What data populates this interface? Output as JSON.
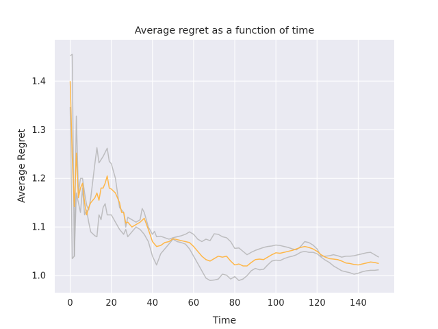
{
  "chart_data": {
    "type": "line",
    "title": "Average regret as a function of time",
    "xlabel": "Time",
    "ylabel": "Average Regret",
    "xlim": [
      -7.5,
      157.5
    ],
    "ylim": [
      0.965,
      1.485
    ],
    "xticks": [
      0,
      20,
      40,
      60,
      80,
      100,
      120,
      140
    ],
    "yticks": [
      1.0,
      1.1,
      1.2,
      1.3,
      1.4
    ],
    "xtick_labels": [
      "0",
      "20",
      "40",
      "60",
      "80",
      "100",
      "120",
      "140"
    ],
    "ytick_labels": [
      "1.0",
      "1.1",
      "1.2",
      "1.3",
      "1.4"
    ],
    "grid": true,
    "background": "#eaeaf2",
    "series": [
      {
        "role": "upper-band",
        "color": "#a9a9a9",
        "x": [
          0,
          1,
          2,
          3,
          4,
          5,
          6,
          7,
          8,
          9,
          10,
          12,
          13,
          14,
          16,
          18,
          19,
          20,
          22,
          24,
          26,
          27,
          28,
          30,
          32,
          34,
          35,
          36,
          38,
          40,
          41,
          42,
          44,
          46,
          48,
          50,
          52,
          54,
          56,
          58,
          60,
          62,
          64,
          66,
          68,
          70,
          72,
          74,
          76,
          78,
          80,
          82,
          84,
          86,
          88,
          90,
          92,
          94,
          96,
          98,
          100,
          102,
          104,
          106,
          108,
          110,
          112,
          114,
          116,
          118,
          120,
          122,
          124,
          126,
          128,
          130,
          132,
          134,
          136,
          138,
          140,
          142,
          144,
          146,
          148,
          150
        ],
        "y": [
          1.452,
          1.455,
          1.04,
          1.328,
          1.17,
          1.2,
          1.2,
          1.17,
          1.145,
          1.135,
          1.16,
          1.23,
          1.263,
          1.232,
          1.245,
          1.262,
          1.235,
          1.23,
          1.2,
          1.14,
          1.13,
          1.1,
          1.12,
          1.115,
          1.11,
          1.115,
          1.138,
          1.13,
          1.1,
          1.085,
          1.091,
          1.08,
          1.081,
          1.078,
          1.075,
          1.078,
          1.08,
          1.082,
          1.085,
          1.09,
          1.085,
          1.075,
          1.07,
          1.075,
          1.072,
          1.086,
          1.085,
          1.08,
          1.078,
          1.07,
          1.056,
          1.057,
          1.05,
          1.043,
          1.048,
          1.052,
          1.055,
          1.058,
          1.06,
          1.061,
          1.063,
          1.062,
          1.06,
          1.058,
          1.055,
          1.053,
          1.06,
          1.07,
          1.068,
          1.063,
          1.055,
          1.04,
          1.04,
          1.041,
          1.043,
          1.041,
          1.038,
          1.04,
          1.04,
          1.041,
          1.043,
          1.045,
          1.047,
          1.048,
          1.043,
          1.038
        ]
      },
      {
        "role": "lower-band",
        "color": "#a9a9a9",
        "x": [
          0,
          1,
          2,
          3,
          4,
          5,
          6,
          7,
          8,
          9,
          10,
          12,
          13,
          14,
          15,
          16,
          17,
          18,
          19,
          20,
          22,
          24,
          26,
          27,
          28,
          30,
          32,
          34,
          36,
          38,
          40,
          42,
          44,
          46,
          48,
          50,
          52,
          54,
          56,
          58,
          60,
          62,
          64,
          66,
          68,
          70,
          72,
          74,
          76,
          78,
          80,
          82,
          84,
          86,
          88,
          90,
          92,
          94,
          96,
          98,
          100,
          102,
          104,
          106,
          108,
          110,
          112,
          114,
          116,
          118,
          120,
          122,
          124,
          126,
          128,
          130,
          132,
          134,
          136,
          138,
          140,
          142,
          144,
          146,
          148,
          150
        ],
        "y": [
          1.347,
          1.035,
          1.04,
          1.17,
          1.15,
          1.13,
          1.18,
          1.125,
          1.135,
          1.11,
          1.09,
          1.082,
          1.08,
          1.125,
          1.115,
          1.14,
          1.148,
          1.125,
          1.125,
          1.125,
          1.11,
          1.095,
          1.085,
          1.095,
          1.08,
          1.09,
          1.1,
          1.095,
          1.085,
          1.07,
          1.04,
          1.022,
          1.045,
          1.055,
          1.065,
          1.075,
          1.07,
          1.068,
          1.065,
          1.055,
          1.04,
          1.025,
          1.01,
          0.995,
          0.99,
          0.991,
          0.993,
          1.003,
          1.001,
          0.993,
          0.998,
          0.99,
          0.993,
          1.0,
          1.01,
          1.015,
          1.012,
          1.013,
          1.022,
          1.03,
          1.032,
          1.031,
          1.035,
          1.038,
          1.04,
          1.043,
          1.048,
          1.05,
          1.048,
          1.048,
          1.045,
          1.038,
          1.032,
          1.027,
          1.02,
          1.015,
          1.01,
          1.008,
          1.006,
          1.003,
          1.005,
          1.008,
          1.01,
          1.011,
          1.011,
          1.012
        ]
      },
      {
        "role": "mean",
        "color": "#ffb43f",
        "x": [
          0,
          1,
          2,
          3,
          4,
          5,
          6,
          7,
          8,
          9,
          10,
          12,
          13,
          14,
          15,
          16,
          17,
          18,
          19,
          20,
          22,
          24,
          25,
          26,
          27,
          28,
          30,
          32,
          34,
          36,
          38,
          40,
          42,
          44,
          46,
          48,
          50,
          52,
          54,
          56,
          58,
          60,
          62,
          64,
          66,
          68,
          70,
          72,
          74,
          76,
          78,
          80,
          82,
          84,
          86,
          88,
          90,
          92,
          94,
          96,
          98,
          100,
          102,
          104,
          106,
          108,
          110,
          112,
          114,
          116,
          118,
          120,
          122,
          124,
          126,
          128,
          130,
          132,
          134,
          136,
          138,
          140,
          142,
          144,
          146,
          148,
          150
        ],
        "y": [
          1.4,
          1.245,
          1.142,
          1.252,
          1.16,
          1.18,
          1.19,
          1.15,
          1.125,
          1.14,
          1.15,
          1.16,
          1.17,
          1.155,
          1.18,
          1.18,
          1.19,
          1.205,
          1.18,
          1.178,
          1.17,
          1.15,
          1.13,
          1.13,
          1.108,
          1.11,
          1.1,
          1.105,
          1.11,
          1.118,
          1.095,
          1.07,
          1.06,
          1.062,
          1.068,
          1.07,
          1.076,
          1.074,
          1.072,
          1.07,
          1.068,
          1.06,
          1.05,
          1.04,
          1.033,
          1.03,
          1.035,
          1.04,
          1.038,
          1.04,
          1.03,
          1.022,
          1.024,
          1.02,
          1.02,
          1.027,
          1.033,
          1.034,
          1.033,
          1.038,
          1.043,
          1.047,
          1.046,
          1.048,
          1.05,
          1.052,
          1.055,
          1.058,
          1.06,
          1.058,
          1.055,
          1.05,
          1.043,
          1.038,
          1.035,
          1.034,
          1.033,
          1.03,
          1.026,
          1.025,
          1.023,
          1.022,
          1.024,
          1.026,
          1.028,
          1.027,
          1.025
        ]
      }
    ]
  }
}
